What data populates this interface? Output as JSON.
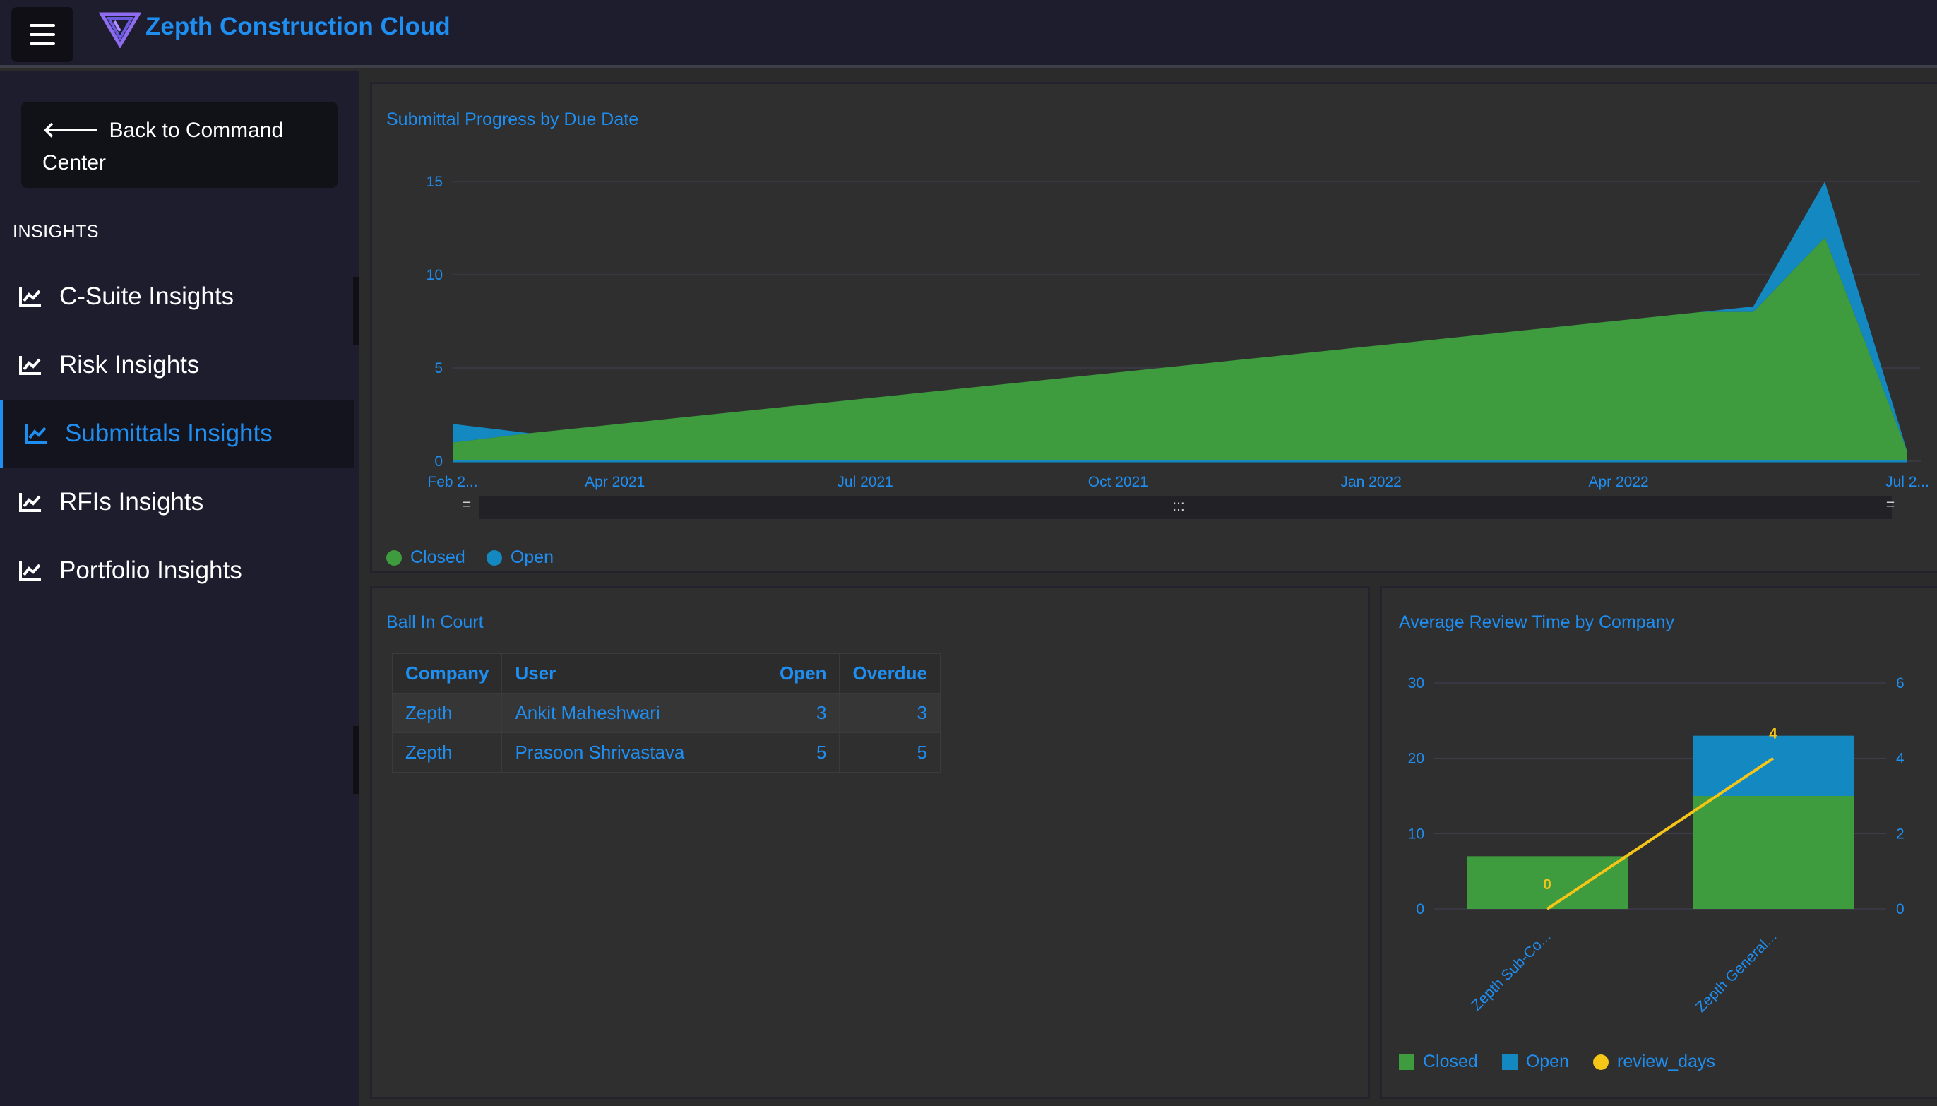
{
  "app": {
    "brand": "Zepth Construction Cloud"
  },
  "sidebar": {
    "back_label": "Back to Command Center",
    "section": "INSIGHTS",
    "items": [
      {
        "label": "C-Suite Insights",
        "icon": "chart-line-icon",
        "active": false
      },
      {
        "label": "Risk Insights",
        "icon": "chart-line-icon",
        "active": false
      },
      {
        "label": "Submittals Insights",
        "icon": "chart-line-icon",
        "active": true
      },
      {
        "label": "RFIs Insights",
        "icon": "chart-line-icon",
        "active": false
      },
      {
        "label": "Portfolio Insights",
        "icon": "chart-line-icon",
        "active": false
      }
    ]
  },
  "colors": {
    "accent": "#1f8ef1",
    "closed": "#3e9b3e",
    "open": "#1488c0",
    "review_days": "#f5c518"
  },
  "progress_panel": {
    "title": "Submittal Progress by Due Date",
    "zoom_handle_left": "=",
    "zoom_handle_right": "=",
    "zoom_grip": ":::",
    "legend": [
      "Closed",
      "Open"
    ]
  },
  "ball_in_court": {
    "title": "Ball In Court",
    "columns": [
      "Company",
      "User",
      "Open",
      "Overdue"
    ],
    "rows": [
      {
        "company": "Zepth",
        "user": "Ankit Maheshwari",
        "open": "3",
        "overdue": "3"
      },
      {
        "company": "Zepth",
        "user": "Prasoon Shrivastava",
        "open": "5",
        "overdue": "5"
      }
    ]
  },
  "review_panel": {
    "title": "Average Review Time by Company",
    "legend": [
      "Closed",
      "Open",
      "review_days"
    ]
  },
  "chart_data": [
    {
      "type": "area",
      "title": "Submittal Progress by Due Date",
      "stacked": true,
      "x": [
        "2021-02-01",
        "2021-03-01",
        "2022-05-01",
        "2022-05-20",
        "2022-06-15",
        "2022-07-15"
      ],
      "x_tick_labels": [
        "Feb 2...",
        "Apr 2021",
        "Jul 2021",
        "Oct 2021",
        "Jan 2022",
        "Apr 2022",
        "Jul 2..."
      ],
      "series": [
        {
          "name": "Closed",
          "values": [
            1,
            1.5,
            8,
            8,
            12,
            0.5
          ]
        },
        {
          "name": "Open",
          "values": [
            1,
            0,
            0,
            0.3,
            3,
            0
          ]
        }
      ],
      "ylim": [
        0,
        15
      ],
      "y_ticks": [
        0,
        5,
        10,
        15
      ],
      "grid": true,
      "legend": "bottom-left"
    },
    {
      "type": "bar",
      "title": "Average Review Time by Company",
      "stacked": true,
      "categories": [
        "Zepth Sub-Co...",
        "Zepth General..."
      ],
      "series": [
        {
          "name": "Closed",
          "values": [
            7,
            15
          ]
        },
        {
          "name": "Open",
          "values": [
            0,
            8
          ]
        },
        {
          "name": "review_days",
          "type": "line",
          "axis": "right",
          "values": [
            0,
            4
          ]
        }
      ],
      "data_labels": [
        "0",
        "4"
      ],
      "ylim": [
        0,
        30
      ],
      "y_ticks": [
        0,
        10,
        20,
        30
      ],
      "y2lim": [
        0,
        6
      ],
      "y2_ticks": [
        0,
        2,
        4,
        6
      ],
      "grid": true,
      "legend": "bottom-left"
    }
  ]
}
